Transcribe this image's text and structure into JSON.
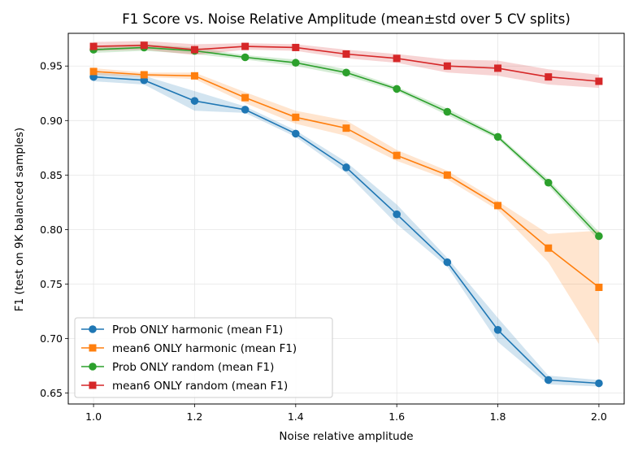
{
  "chart_data": {
    "type": "line",
    "title": "F1 Score vs. Noise Relative Amplitude (mean±std over 5 CV splits)",
    "xlabel": "Noise relative amplitude",
    "ylabel": "F1 (test on 9K balanced samples)",
    "xlim": [
      0.95,
      2.05
    ],
    "ylim": [
      0.64,
      0.98
    ],
    "xticks": [
      1.0,
      1.2,
      1.4,
      1.6,
      1.8,
      2.0
    ],
    "xtick_labels": [
      "1.0",
      "1.2",
      "1.4",
      "1.6",
      "1.8",
      "2.0"
    ],
    "yticks": [
      0.65,
      0.7,
      0.75,
      0.8,
      0.85,
      0.9,
      0.95
    ],
    "ytick_labels": [
      "0.65",
      "0.70",
      "0.75",
      "0.80",
      "0.85",
      "0.90",
      "0.95"
    ],
    "grid": true,
    "legend_position": "lower-left",
    "x": [
      1.0,
      1.1,
      1.2,
      1.3,
      1.4,
      1.5,
      1.6,
      1.7,
      1.8,
      1.9,
      2.0
    ],
    "series": [
      {
        "name": "Prob ONLY harmonic (mean F1)",
        "color": "#1f77b4",
        "marker": "circle",
        "values": [
          0.94,
          0.937,
          0.918,
          0.91,
          0.888,
          0.857,
          0.814,
          0.77,
          0.708,
          0.662,
          0.659
        ],
        "std": [
          0.004,
          0.004,
          0.009,
          0.003,
          0.003,
          0.005,
          0.009,
          0.004,
          0.011,
          0.004,
          0.003
        ]
      },
      {
        "name": "mean6 ONLY harmonic (mean F1)",
        "color": "#ff7f0e",
        "marker": "square",
        "values": [
          0.945,
          0.942,
          0.941,
          0.921,
          0.903,
          0.893,
          0.868,
          0.85,
          0.822,
          0.783,
          0.747
        ],
        "std": [
          0.003,
          0.002,
          0.003,
          0.005,
          0.006,
          0.007,
          0.005,
          0.004,
          0.004,
          0.013,
          0.052
        ]
      },
      {
        "name": "Prob ONLY random (mean F1)",
        "color": "#2ca02c",
        "marker": "circle",
        "values": [
          0.965,
          0.967,
          0.964,
          0.958,
          0.953,
          0.944,
          0.929,
          0.908,
          0.885,
          0.843,
          0.794
        ],
        "std": [
          0.003,
          0.003,
          0.003,
          0.002,
          0.003,
          0.003,
          0.002,
          0.003,
          0.002,
          0.003,
          0.004
        ]
      },
      {
        "name": "mean6 ONLY random (mean F1)",
        "color": "#d62728",
        "marker": "square",
        "values": [
          0.968,
          0.969,
          0.965,
          0.968,
          0.967,
          0.961,
          0.957,
          0.95,
          0.948,
          0.94,
          0.936
        ],
        "std": [
          0.004,
          0.004,
          0.005,
          0.003,
          0.003,
          0.004,
          0.004,
          0.006,
          0.007,
          0.007,
          0.006
        ]
      }
    ]
  }
}
